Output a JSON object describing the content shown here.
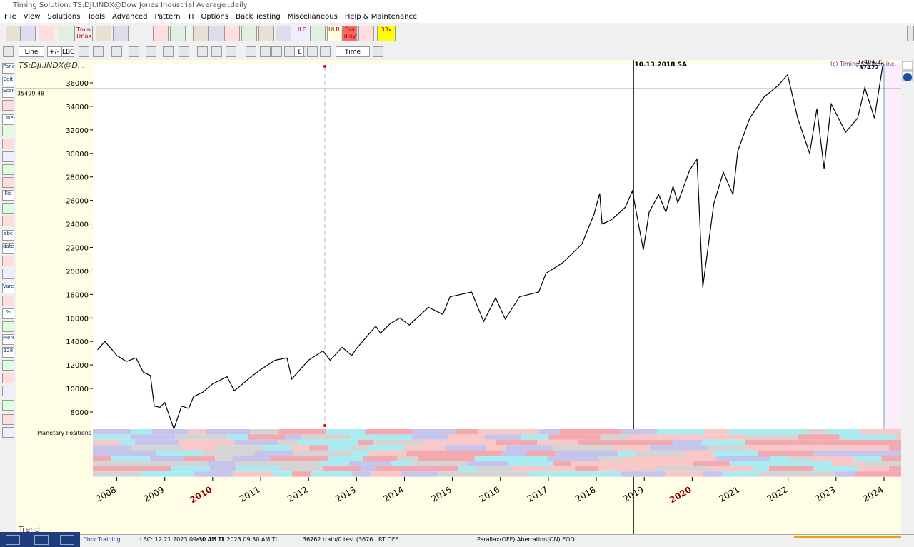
{
  "window": {
    "title": "Timing Solution:  TS:DJI.INDX@Dow Jones Industrial Average  :daily",
    "menu": [
      "File",
      "View",
      "Solutions",
      "Tools",
      "Advanced",
      "Pattern",
      "TI",
      "Options",
      "Back Testing",
      "Miscellaneous",
      "Help & Maintenance"
    ],
    "toolbar1": [
      "Tmin Tmax",
      "ULE",
      "ULB",
      "Bra dley",
      "33x"
    ],
    "toolbar2": [
      "Line",
      "+/-",
      "LBC",
      "Σ",
      "Time"
    ],
    "panel_buttons": [
      "Panel",
      "Edit",
      "Scan",
      "Line",
      "Fib",
      "abc",
      "date",
      "Vare",
      "%",
      "More",
      "128"
    ],
    "status_bar": [
      "York  Training",
      "LBC: 12.21.2023   09:30 AM TI",
      "Last: 12.21.2023   09:30 AM TI",
      "36762 train/0 test (3676",
      "RT OFF",
      "Parallax(OFF) Aberration(ON) EOD"
    ]
  },
  "chart_data": {
    "type": "line",
    "title": "TS:DJI.INDX@D...",
    "copyright": "(c) Timing Solution inc.",
    "last_values": [
      "37404.35",
      "37422"
    ],
    "band_label": "Planetary Positions",
    "bottom_label": "Trend",
    "color": "#000000",
    "x": [
      2007.6,
      2007.75,
      2007.9,
      2008.0,
      2008.2,
      2008.4,
      2008.55,
      2008.7,
      2008.78,
      2008.9,
      2009.0,
      2009.19,
      2009.35,
      2009.5,
      2009.6,
      2009.8,
      2010.0,
      2010.3,
      2010.45,
      2010.6,
      2010.8,
      2011.0,
      2011.3,
      2011.55,
      2011.65,
      2011.8,
      2012.0,
      2012.3,
      2012.45,
      2012.7,
      2012.9,
      2013.0,
      2013.4,
      2013.5,
      2013.7,
      2013.9,
      2014.1,
      2014.5,
      2014.8,
      2014.95,
      2015.4,
      2015.65,
      2015.9,
      2016.1,
      2016.4,
      2016.8,
      2016.95,
      2017.3,
      2017.7,
      2017.95,
      2018.07,
      2018.12,
      2018.3,
      2018.6,
      2018.75,
      2018.98,
      2019.1,
      2019.3,
      2019.45,
      2019.6,
      2019.7,
      2019.95,
      2020.1,
      2020.22,
      2020.45,
      2020.65,
      2020.85,
      2020.95,
      2021.2,
      2021.5,
      2021.8,
      2021.99,
      2022.2,
      2022.45,
      2022.6,
      2022.75,
      2022.9,
      2023.2,
      2023.45,
      2023.6,
      2023.8,
      2023.97
    ],
    "values": [
      13300,
      14000,
      13300,
      12800,
      12300,
      12600,
      11400,
      11100,
      8500,
      8400,
      8800,
      6550,
      8500,
      8300,
      9300,
      9700,
      10400,
      11000,
      9800,
      10300,
      11000,
      11600,
      12400,
      12600,
      10800,
      11500,
      12400,
      13200,
      12400,
      13500,
      12800,
      13400,
      15300,
      14700,
      15500,
      16000,
      15400,
      16900,
      16300,
      17800,
      18200,
      15700,
      17700,
      15900,
      17800,
      18200,
      19800,
      20700,
      22300,
      24800,
      26600,
      24000,
      24300,
      25400,
      26800,
      21800,
      25000,
      26500,
      25000,
      27200,
      25800,
      28600,
      29500,
      18600,
      25700,
      28400,
      26500,
      30200,
      33000,
      34800,
      35800,
      36700,
      33000,
      30000,
      33800,
      28700,
      34200,
      31800,
      33000,
      35600,
      33000,
      37400
    ],
    "xlim": [
      2007.5,
      2024.0
    ],
    "ylim": [
      6540,
      37580
    ],
    "xticks": [
      2008,
      2009,
      2010,
      2011,
      2012,
      2013,
      2014,
      2015,
      2016,
      2017,
      2018,
      2019,
      2020,
      2021,
      2022,
      2023,
      2024
    ],
    "yticks": [
      8000,
      10000,
      12000,
      14000,
      16000,
      18000,
      20000,
      22000,
      24000,
      26000,
      28000,
      30000,
      32000,
      34000,
      36000
    ],
    "hline": 35499.48,
    "vline": {
      "value": 2018.78,
      "label": "10.13.2018 SA"
    },
    "marker_x": 2012.34
  }
}
